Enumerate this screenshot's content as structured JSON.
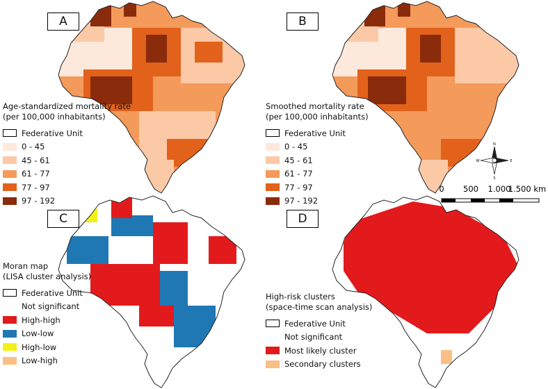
{
  "panels": [
    {
      "label": "A",
      "legend": {
        "title": [
          "Age-standardized mortality rate",
          "(per 100,000 inhabitants)"
        ],
        "items": [
          {
            "label": "Federative Unit",
            "style": "outline"
          },
          {
            "label": "0 - 45",
            "color": "#fde9dc"
          },
          {
            "label": "45 - 61",
            "color": "#fbc9a6"
          },
          {
            "label": "61 - 77",
            "color": "#f49a5b"
          },
          {
            "label": "77 - 97",
            "color": "#e2621b"
          },
          {
            "label": "97 - 192",
            "color": "#8a2b0b"
          }
        ]
      }
    },
    {
      "label": "B",
      "legend": {
        "title": [
          "Smoothed mortality rate",
          "(per 100,000 inhabitants)"
        ],
        "items": [
          {
            "label": "Federative Unit",
            "style": "outline"
          },
          {
            "label": "0 - 45",
            "color": "#fde9dc"
          },
          {
            "label": "45 - 61",
            "color": "#fbc9a6"
          },
          {
            "label": "61 - 77",
            "color": "#f49a5b"
          },
          {
            "label": "77 - 97",
            "color": "#e2621b"
          },
          {
            "label": "97 - 192",
            "color": "#8a2b0b"
          }
        ]
      }
    },
    {
      "label": "C",
      "legend": {
        "title": [
          "Moran map",
          "(LISA cluster analysis)"
        ],
        "items": [
          {
            "label": "Federative Unit",
            "style": "outline"
          },
          {
            "label": "Not significant",
            "color": "#ffffff"
          },
          {
            "label": "High-high",
            "color": "#e31a1c"
          },
          {
            "label": "Low-low",
            "color": "#1f78b4"
          },
          {
            "label": "High-low",
            "color": "#f2f21a"
          },
          {
            "label": "Low-high",
            "color": "#fbbf86"
          }
        ]
      }
    },
    {
      "label": "D",
      "legend": {
        "title": [
          "High-risk clusters",
          "(space-time scan analysis)"
        ],
        "items": [
          {
            "label": "Federative Unit",
            "style": "outline"
          },
          {
            "label": "Not significant",
            "color": "#ffffff"
          },
          {
            "label": "Most likely cluster",
            "color": "#e31a1c"
          },
          {
            "label": "Secondary clusters",
            "color": "#fbbf86"
          }
        ]
      }
    }
  ],
  "scale_bar": {
    "labels": [
      "0",
      "500",
      "1.000",
      "1.500 km"
    ]
  },
  "north_arrow": {
    "icon": "compass-rose-icon",
    "letters": {
      "n": "N",
      "s": "S",
      "e": "E",
      "w": "W"
    }
  }
}
